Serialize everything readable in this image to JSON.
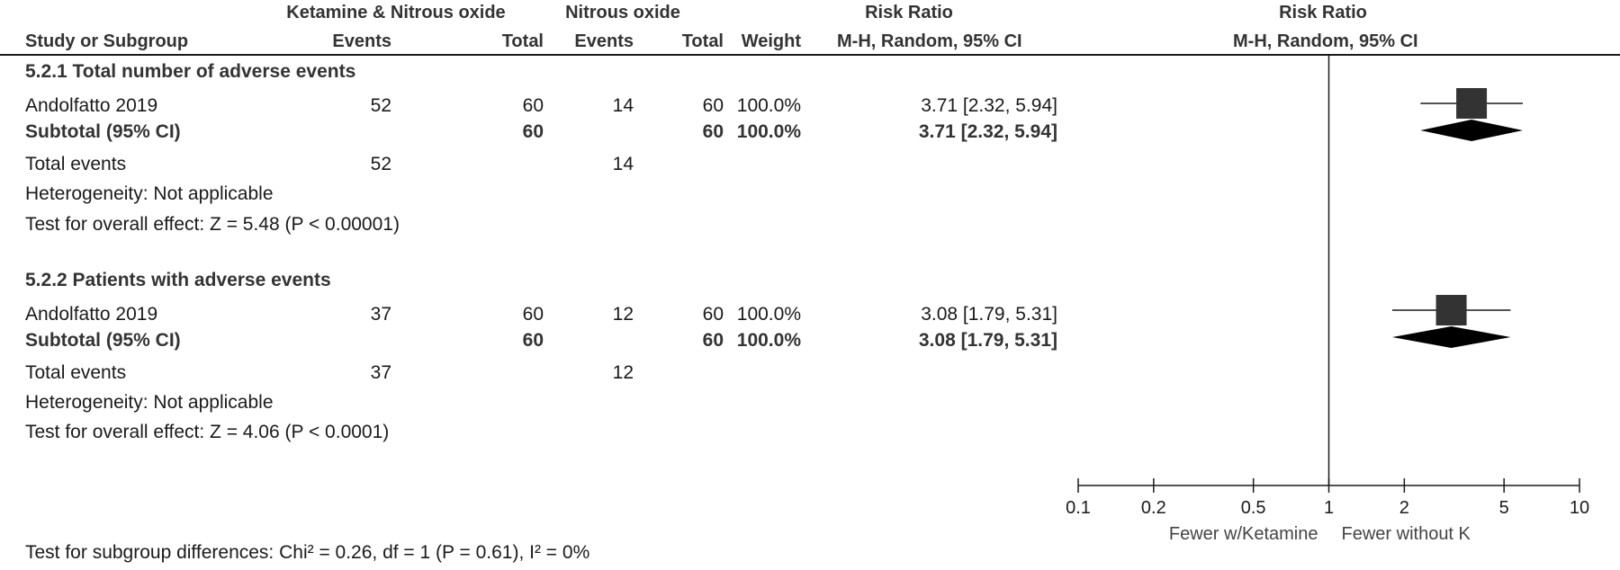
{
  "header": {
    "group1": "Ketamine & Nitrous oxide",
    "group2": "Nitrous oxide",
    "risk_ratio_label": "Risk Ratio",
    "risk_ratio_plot_label": "Risk Ratio",
    "study_col": "Study or Subgroup",
    "events1": "Events",
    "total1": "Total",
    "events2": "Events",
    "total2": "Total",
    "weight": "Weight",
    "method": "M-H, Random, 95% CI",
    "method_plot": "M-H, Random, 95% CI"
  },
  "subgroups": [
    {
      "title": "5.2.1 Total number of adverse events",
      "study": {
        "name": "Andolfatto 2019",
        "events1": "52",
        "total1": "60",
        "events2": "14",
        "total2": "60",
        "weight": "100.0%",
        "rr": "3.71 [2.32, 5.94]"
      },
      "subtotal": {
        "label": "Subtotal (95% CI)",
        "total1": "60",
        "total2": "60",
        "weight": "100.0%",
        "rr_value": "3.71",
        "rr_ci": "[2.32, 5.94]"
      },
      "total_events": {
        "label": "Total events",
        "events1": "52",
        "events2": "14"
      },
      "heterogeneity": "Heterogeneity: Not applicable",
      "overall_effect": "Test for overall effect: Z = 5.48 (P < 0.00001)"
    },
    {
      "title": "5.2.2 Patients with adverse events",
      "study": {
        "name": "Andolfatto 2019",
        "events1": "37",
        "total1": "60",
        "events2": "12",
        "total2": "60",
        "weight": "100.0%",
        "rr": "3.08 [1.79, 5.31]"
      },
      "subtotal": {
        "label": "Subtotal (95% CI)",
        "total1": "60",
        "total2": "60",
        "weight": "100.0%",
        "rr_value": "3.08",
        "rr_ci": "[1.79, 5.31]"
      },
      "total_events": {
        "label": "Total events",
        "events1": "37",
        "events2": "12"
      },
      "heterogeneity": "Heterogeneity: Not applicable",
      "overall_effect": "Test for overall effect: Z = 4.06 (P < 0.0001)"
    }
  ],
  "footer": {
    "subgroup_test": "Test for subgroup differences: Chi² = 0.26, df = 1 (P = 0.61), I² = 0%"
  },
  "chart_data": {
    "type": "forest",
    "scale": "log",
    "xlim": [
      0.1,
      10
    ],
    "ticks": [
      "0.1",
      "0.2",
      "0.5",
      "1",
      "2",
      "5",
      "10"
    ],
    "tick_values": [
      0.1,
      0.2,
      0.5,
      1,
      2,
      5,
      10
    ],
    "label_left": "Fewer w/Ketamine",
    "label_right": "Fewer without K",
    "null_value": 1,
    "rows": [
      {
        "kind": "study",
        "group": "5.2.1",
        "est": 3.71,
        "lo": 2.32,
        "hi": 5.94
      },
      {
        "kind": "subtotal",
        "group": "5.2.1",
        "est": 3.71,
        "lo": 2.32,
        "hi": 5.94
      },
      {
        "kind": "study",
        "group": "5.2.2",
        "est": 3.08,
        "lo": 1.79,
        "hi": 5.31
      },
      {
        "kind": "subtotal",
        "group": "5.2.2",
        "est": 3.08,
        "lo": 1.79,
        "hi": 5.31
      }
    ],
    "colors": {
      "marker": "#333333",
      "line": "#1a1a1a"
    }
  }
}
